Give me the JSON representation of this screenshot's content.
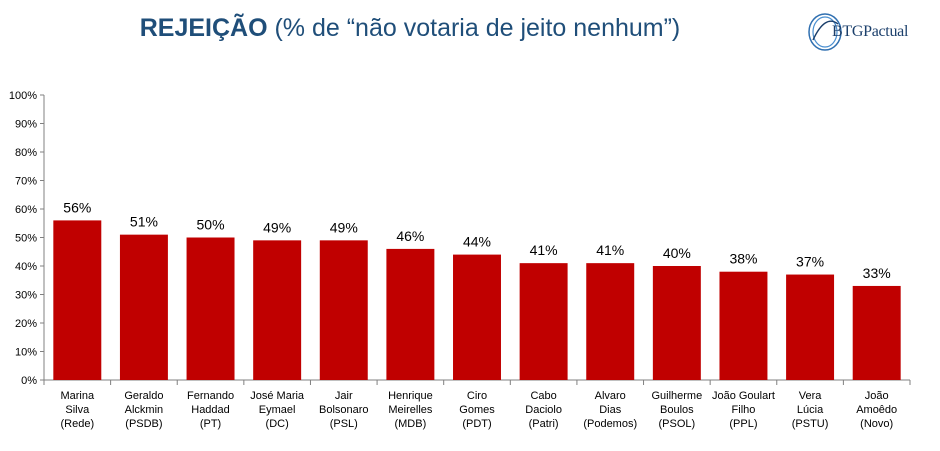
{
  "header": {
    "title_bold": "REJEIÇÃO",
    "title_rest": " (% de “não votaria de jeito nenhum”)",
    "logo_text": "BTGPactual"
  },
  "colors": {
    "bar": "#c00000",
    "title": "#1f4e79",
    "axis": "#808080"
  },
  "chart_data": {
    "type": "bar",
    "title": "REJEIÇÃO (% de “não votaria de jeito nenhum”)",
    "xlabel": "",
    "ylabel": "",
    "ylim": [
      0,
      100
    ],
    "y_ticks": [
      "0%",
      "10%",
      "20%",
      "30%",
      "40%",
      "50%",
      "60%",
      "70%",
      "80%",
      "90%",
      "100%"
    ],
    "grid": false,
    "categories": [
      [
        "Marina",
        "Silva",
        "(Rede)"
      ],
      [
        "Geraldo",
        "Alckmin",
        "(PSDB)"
      ],
      [
        "Fernando",
        "Haddad",
        "(PT)"
      ],
      [
        "José Maria",
        "Eymael",
        "(DC)"
      ],
      [
        "Jair",
        "Bolsonaro",
        "(PSL)"
      ],
      [
        "Henrique",
        "Meirelles",
        "(MDB)"
      ],
      [
        "Ciro",
        "Gomes",
        "(PDT)"
      ],
      [
        "Cabo",
        "Daciolo",
        "(Patri)"
      ],
      [
        "Alvaro",
        "Dias",
        "(Podemos)"
      ],
      [
        "Guilherme",
        "Boulos",
        "(PSOL)"
      ],
      [
        "João Goulart",
        "Filho",
        "(PPL)"
      ],
      [
        "Vera",
        "Lúcia",
        "(PSTU)"
      ],
      [
        "João",
        "Amoêdo",
        "(Novo)"
      ]
    ],
    "values": [
      56,
      51,
      50,
      49,
      49,
      46,
      44,
      41,
      41,
      40,
      38,
      37,
      33
    ],
    "value_labels": [
      "56%",
      "51%",
      "50%",
      "49%",
      "49%",
      "46%",
      "44%",
      "41%",
      "41%",
      "40%",
      "38%",
      "37%",
      "33%"
    ]
  }
}
